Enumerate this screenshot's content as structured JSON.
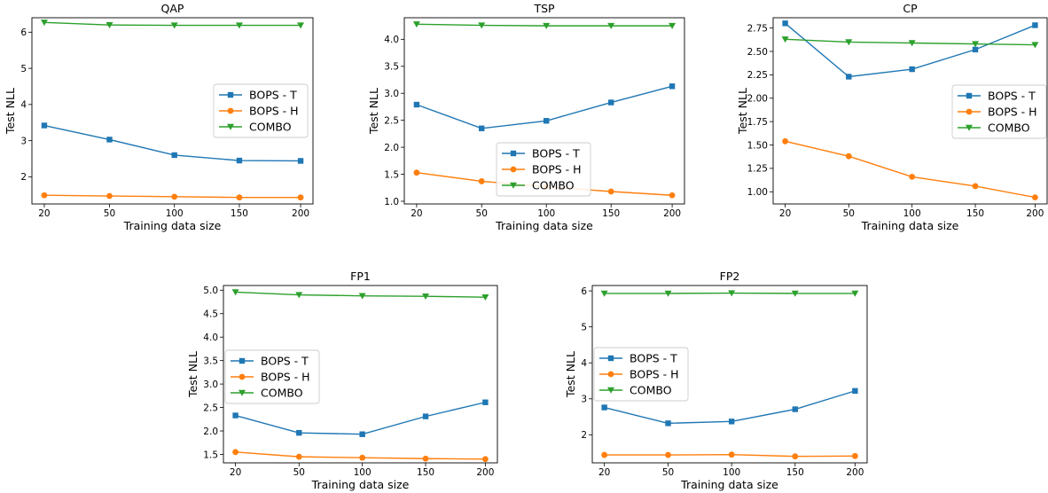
{
  "colors": {
    "bops_t": "#1f77b4",
    "bops_h": "#ff7f0e",
    "combo": "#2ca02c"
  },
  "chart_data": [
    {
      "type": "line",
      "title": "QAP",
      "xlabel": "Training data size",
      "ylabel": "Test NLL",
      "x": [
        "20",
        "50",
        "100",
        "150",
        "200"
      ],
      "ylim": [
        1.25,
        6.4
      ],
      "yticks": [
        "2",
        "3",
        "4",
        "5",
        "6"
      ],
      "legend": "center-right",
      "series": [
        {
          "name": "BOPS - T",
          "marker": "square",
          "values": [
            3.42,
            3.03,
            2.6,
            2.45,
            2.44
          ]
        },
        {
          "name": "BOPS - H",
          "marker": "circle",
          "values": [
            1.49,
            1.47,
            1.45,
            1.43,
            1.43
          ]
        },
        {
          "name": "COMBO",
          "marker": "triangle-down",
          "values": [
            6.27,
            6.2,
            6.19,
            6.19,
            6.19
          ]
        }
      ]
    },
    {
      "type": "line",
      "title": "TSP",
      "xlabel": "Training data size",
      "ylabel": "Test NLL",
      "x": [
        "20",
        "50",
        "100",
        "150",
        "200"
      ],
      "ylim": [
        0.95,
        4.4
      ],
      "yticks": [
        "1.0",
        "1.5",
        "2.0",
        "2.5",
        "3.0",
        "3.5",
        "4.0"
      ],
      "legend": "lower-center",
      "series": [
        {
          "name": "BOPS - T",
          "marker": "square",
          "values": [
            2.79,
            2.35,
            2.49,
            2.83,
            3.13
          ]
        },
        {
          "name": "BOPS - H",
          "marker": "circle",
          "values": [
            1.53,
            1.37,
            1.27,
            1.18,
            1.11
          ]
        },
        {
          "name": "COMBO",
          "marker": "triangle-down",
          "values": [
            4.28,
            4.26,
            4.25,
            4.25,
            4.25
          ]
        }
      ]
    },
    {
      "type": "line",
      "title": "CP",
      "xlabel": "Training data size",
      "ylabel": "Test NLL",
      "x": [
        "20",
        "50",
        "100",
        "150",
        "200"
      ],
      "ylim": [
        0.87,
        2.86
      ],
      "yticks": [
        "1.00",
        "1.25",
        "1.50",
        "1.75",
        "2.00",
        "2.25",
        "2.50",
        "2.75"
      ],
      "legend": "center-right",
      "series": [
        {
          "name": "BOPS - T",
          "marker": "square",
          "values": [
            2.8,
            2.23,
            2.31,
            2.52,
            2.78
          ]
        },
        {
          "name": "BOPS - H",
          "marker": "circle",
          "values": [
            1.54,
            1.38,
            1.16,
            1.06,
            0.94
          ]
        },
        {
          "name": "COMBO",
          "marker": "triangle-down",
          "values": [
            2.63,
            2.6,
            2.59,
            2.58,
            2.57
          ]
        }
      ]
    },
    {
      "type": "line",
      "title": "FP1",
      "xlabel": "Training data size",
      "ylabel": "Test NLL",
      "x": [
        "20",
        "50",
        "100",
        "150",
        "200"
      ],
      "ylim": [
        1.32,
        5.1
      ],
      "yticks": [
        "1.5",
        "2.0",
        "2.5",
        "3.0",
        "3.5",
        "4.0",
        "4.5",
        "5.0"
      ],
      "legend": "lower-left",
      "series": [
        {
          "name": "BOPS - T",
          "marker": "square",
          "values": [
            2.33,
            1.96,
            1.93,
            2.31,
            2.61
          ]
        },
        {
          "name": "BOPS - H",
          "marker": "circle",
          "values": [
            1.55,
            1.45,
            1.43,
            1.41,
            1.4
          ]
        },
        {
          "name": "COMBO",
          "marker": "triangle-down",
          "values": [
            4.96,
            4.9,
            4.88,
            4.87,
            4.85
          ]
        }
      ]
    },
    {
      "type": "line",
      "title": "FP2",
      "xlabel": "Training data size",
      "ylabel": "Test NLL",
      "x": [
        "20",
        "50",
        "100",
        "150",
        "200"
      ],
      "ylim": [
        1.22,
        6.15
      ],
      "yticks": [
        "2",
        "3",
        "4",
        "5",
        "6"
      ],
      "legend": "lower-left",
      "series": [
        {
          "name": "BOPS - T",
          "marker": "square",
          "values": [
            2.76,
            2.32,
            2.37,
            2.71,
            3.22
          ]
        },
        {
          "name": "BOPS - H",
          "marker": "circle",
          "values": [
            1.44,
            1.44,
            1.45,
            1.4,
            1.41
          ]
        },
        {
          "name": "COMBO",
          "marker": "triangle-down",
          "values": [
            5.93,
            5.93,
            5.94,
            5.93,
            5.93
          ]
        }
      ]
    }
  ]
}
